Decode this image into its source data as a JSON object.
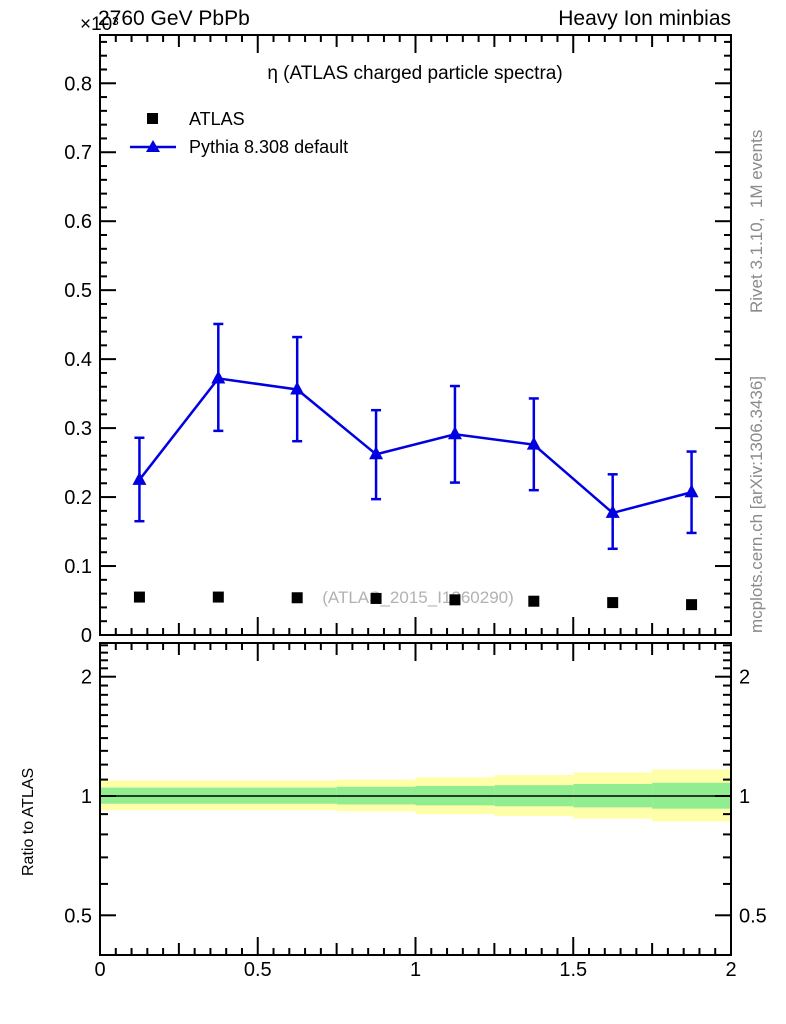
{
  "header": {
    "left": "2760 GeV PbPb",
    "right": "Heavy Ion minbias"
  },
  "y_multiplier": "×10³",
  "watermark": "(ATLAS_2015_I1360290)",
  "ratio_ylabel": "Ratio to ATLAS",
  "side_notes": {
    "top_right_vertical": "Rivet 3.1.10,  1M events",
    "bottom_right_vertical": "mcplots.cern.ch [arXiv:1306.3436]",
    "color": "#8a8a8a"
  },
  "legend": {
    "items": [
      {
        "label": "ATLAS",
        "marker": "filled-square",
        "color": "#000000"
      },
      {
        "label": "Pythia 8.308 default",
        "marker": "line-with-filled-triangle",
        "color": "#0000e0"
      }
    ]
  },
  "chart_data": {
    "type": "line",
    "title": "η (ATLAS charged particle spectra)",
    "header_left": "2760 GeV PbPb",
    "header_right": "Heavy Ion minbias",
    "xlabel": "",
    "ylabel": "",
    "x_range": [
      0,
      2
    ],
    "x_tick_labels": [
      {
        "v": 0,
        "t": "0"
      },
      {
        "v": 0.5,
        "t": "0.5"
      },
      {
        "v": 1,
        "t": "1"
      },
      {
        "v": 1.5,
        "t": "1.5"
      },
      {
        "v": 2,
        "t": "2"
      }
    ],
    "main": {
      "ylim": [
        0,
        0.87
      ],
      "y_multiplier": "×10³",
      "grid": false,
      "y_tick_labels": [
        {
          "v": 0,
          "t": "0"
        },
        {
          "v": 0.1,
          "t": "0.1"
        },
        {
          "v": 0.2,
          "t": "0.2"
        },
        {
          "v": 0.3,
          "t": "0.3"
        },
        {
          "v": 0.4,
          "t": "0.4"
        },
        {
          "v": 0.5,
          "t": "0.5"
        },
        {
          "v": 0.6,
          "t": "0.6"
        },
        {
          "v": 0.7,
          "t": "0.7"
        },
        {
          "v": 0.8,
          "t": "0.8"
        }
      ],
      "x": [
        0.125,
        0.375,
        0.625,
        0.875,
        1.125,
        1.375,
        1.625,
        1.875
      ],
      "series": [
        {
          "name": "ATLAS",
          "type": "scatter",
          "marker": "square",
          "color": "#000000",
          "y": [
            0.055,
            0.055,
            0.054,
            0.053,
            0.051,
            0.049,
            0.047,
            0.044
          ]
        },
        {
          "name": "Pythia 8.308 default",
          "type": "line+markers",
          "marker": "triangle",
          "color": "#0000e0",
          "y": [
            0.225,
            0.372,
            0.356,
            0.262,
            0.291,
            0.276,
            0.177,
            0.207
          ],
          "y_lo": [
            0.165,
            0.296,
            0.281,
            0.197,
            0.221,
            0.21,
            0.125,
            0.148
          ],
          "y_hi": [
            0.286,
            0.451,
            0.432,
            0.326,
            0.361,
            0.343,
            0.233,
            0.266
          ]
        }
      ]
    },
    "ratio": {
      "scale": "log",
      "ylim": [
        0.397,
        2.43
      ],
      "unity": 1,
      "ylabel": "Ratio to ATLAS",
      "y_tick_labels": [
        {
          "v": 2,
          "t": "2"
        },
        {
          "v": 1,
          "t": "1"
        },
        {
          "v": 0.5,
          "t": "0.5"
        }
      ],
      "band_colors": {
        "outer": "#ffffaa",
        "inner": "#90ee90"
      },
      "bands": [
        {
          "x0": 0.0,
          "x1": 0.75,
          "outer_lo": 0.92,
          "outer_hi": 1.095,
          "inner_lo": 0.956,
          "inner_hi": 1.05
        },
        {
          "x0": 0.75,
          "x1": 1.0,
          "outer_lo": 0.915,
          "outer_hi": 1.1,
          "inner_lo": 0.952,
          "inner_hi": 1.055
        },
        {
          "x0": 1.0,
          "x1": 1.25,
          "outer_lo": 0.9,
          "outer_hi": 1.115,
          "inner_lo": 0.947,
          "inner_hi": 1.06
        },
        {
          "x0": 1.25,
          "x1": 1.5,
          "outer_lo": 0.89,
          "outer_hi": 1.13,
          "inner_lo": 0.942,
          "inner_hi": 1.065
        },
        {
          "x0": 1.5,
          "x1": 1.75,
          "outer_lo": 0.877,
          "outer_hi": 1.147,
          "inner_lo": 0.936,
          "inner_hi": 1.072
        },
        {
          "x0": 1.75,
          "x1": 2.0,
          "outer_lo": 0.862,
          "outer_hi": 1.167,
          "inner_lo": 0.929,
          "inner_hi": 1.08
        }
      ]
    }
  }
}
